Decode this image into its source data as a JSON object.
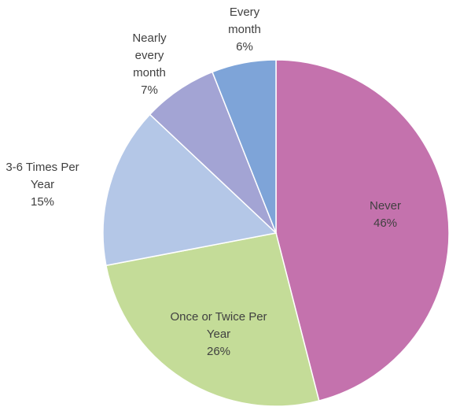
{
  "chart_data": {
    "type": "pie",
    "categories": [
      "Never",
      "Once or Twice Per Year",
      "3-6 Times Per Year",
      "Nearly every month",
      "Every month"
    ],
    "values": [
      46,
      26,
      15,
      7,
      6
    ],
    "value_labels": [
      "46%",
      "26%",
      "15%",
      "7%",
      "6%"
    ],
    "colors": [
      "#c472ad",
      "#c4dc98",
      "#b4c7e7",
      "#a3a4d4",
      "#7ea4d8"
    ]
  }
}
